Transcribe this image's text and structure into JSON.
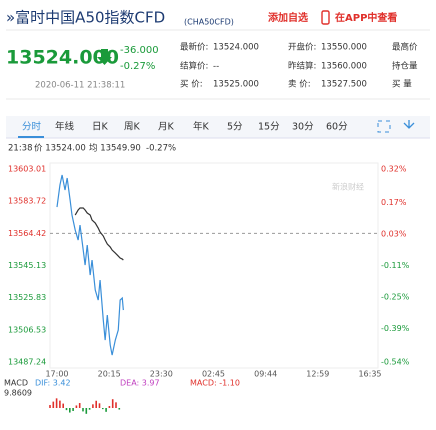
{
  "header": {
    "title": "»富时中国A50指数CFD",
    "code": "(CHA50CFD)",
    "add": "添加自选",
    "app": "在APP中查看"
  },
  "quote": {
    "price": "13524.000",
    "change": "-36.000",
    "pct": "-0.27%",
    "time": "2020-06-11 21:38:11"
  },
  "fields": [
    [
      {
        "label": "最新价:",
        "value": "13524.000"
      },
      {
        "label": "开盘价:",
        "value": "13550.000"
      },
      {
        "label": "最高价",
        "value": ""
      }
    ],
    [
      {
        "label": "结算价:",
        "value": "--"
      },
      {
        "label": "昨结算:",
        "value": "13560.000"
      },
      {
        "label": "持仓量",
        "value": ""
      }
    ],
    [
      {
        "label": "买  价:",
        "value": "13525.000"
      },
      {
        "label": "卖  价:",
        "value": "13527.500"
      },
      {
        "label": "买  量",
        "value": ""
      }
    ]
  ],
  "tabs": [
    "分时",
    "年线",
    "日K",
    "周K",
    "月K",
    "年K",
    "5分",
    "15分",
    "30分",
    "60分"
  ],
  "info": [
    "21:38",
    "价 13524.00",
    "均 13549.90",
    "-0.27%"
  ],
  "watermark": "新浪财经",
  "chart_data": {
    "type": "line",
    "x": [
      0,
      11,
      19,
      30,
      38,
      49,
      56,
      68,
      79,
      86,
      98,
      105,
      113,
      124,
      131,
      143,
      154,
      161,
      173,
      180,
      188,
      199,
      206,
      218,
      229,
      236,
      244,
      248
    ],
    "series": [
      {
        "name": "价",
        "color": "#3a8fd9",
        "values": [
          13580.2,
          13593.4,
          13599.4,
          13590.4,
          13597.6,
          13584.4,
          13575.4,
          13566.4,
          13560.4,
          13569.4,
          13554.4,
          13545.4,
          13557.4,
          13539.4,
          13548.4,
          13530.4,
          13524.4,
          13536.4,
          13512.4,
          13500.4,
          13515.4,
          13497.4,
          13491.4,
          13500.4,
          13506.4,
          13524.4,
          13525.6,
          13518.4
        ]
      },
      {
        "name": "均",
        "color": "#333333",
        "values": [
          null,
          null,
          null,
          null,
          null,
          null,
          null,
          13575.4,
          13578.4,
          13579.6,
          13579.6,
          13578.4,
          13576.6,
          13575.4,
          13572.4,
          13570.6,
          13567.6,
          13565.2,
          13562.8,
          13560.4,
          13558.0,
          13556.2,
          13554.4,
          13552.6,
          13550.8,
          13549.6,
          13549.0,
          13548.4
        ]
      }
    ],
    "xlim": [
      0,
      1170
    ],
    "xticks": [
      {
        "value": 0,
        "label": "17:00"
      },
      {
        "value": 195,
        "label": "20:15"
      },
      {
        "value": 390,
        "label": "23:30"
      },
      {
        "value": 585,
        "label": "02:45"
      },
      {
        "value": 780,
        "label": "09:44"
      },
      {
        "value": 975,
        "label": "12:59"
      },
      {
        "value": 1170,
        "label": "16:35"
      }
    ],
    "ylim": [
      13487.24,
      13603.01
    ],
    "yticks": [
      13603.01,
      13583.72,
      13564.42,
      13545.13,
      13525.83,
      13506.53,
      13487.24
    ],
    "y2lim": [
      -0.54,
      0.32
    ],
    "y2ticks": [
      {
        "value": 0.32,
        "label": "0.32%"
      },
      {
        "value": 0.17,
        "label": "0.17%"
      },
      {
        "value": 0.03,
        "label": "0.03%"
      },
      {
        "value": -0.11,
        "label": "-0.11%"
      },
      {
        "value": -0.25,
        "label": "-0.25%"
      },
      {
        "value": -0.39,
        "label": "-0.39%"
      },
      {
        "value": -0.54,
        "label": "-0.54%"
      }
    ],
    "up_color": "#e0302b",
    "down_color": "#1a9a3a"
  },
  "macd": {
    "name": "MACD",
    "dif": "DIF: 3.42",
    "dea": "DEA: 3.97",
    "macd": "MACD: -1.10",
    "top": 9.8609,
    "values": [
      2.1,
      4.5,
      6.8,
      5.2,
      3.1,
      -1.5,
      -3.2,
      -2.1,
      1.8,
      3.5,
      -2.4,
      -4.1,
      -1.2,
      2.6,
      5.1,
      3.3,
      -0.8,
      -2.7,
      1.4,
      6.2,
      4.0,
      -1.1
    ]
  }
}
